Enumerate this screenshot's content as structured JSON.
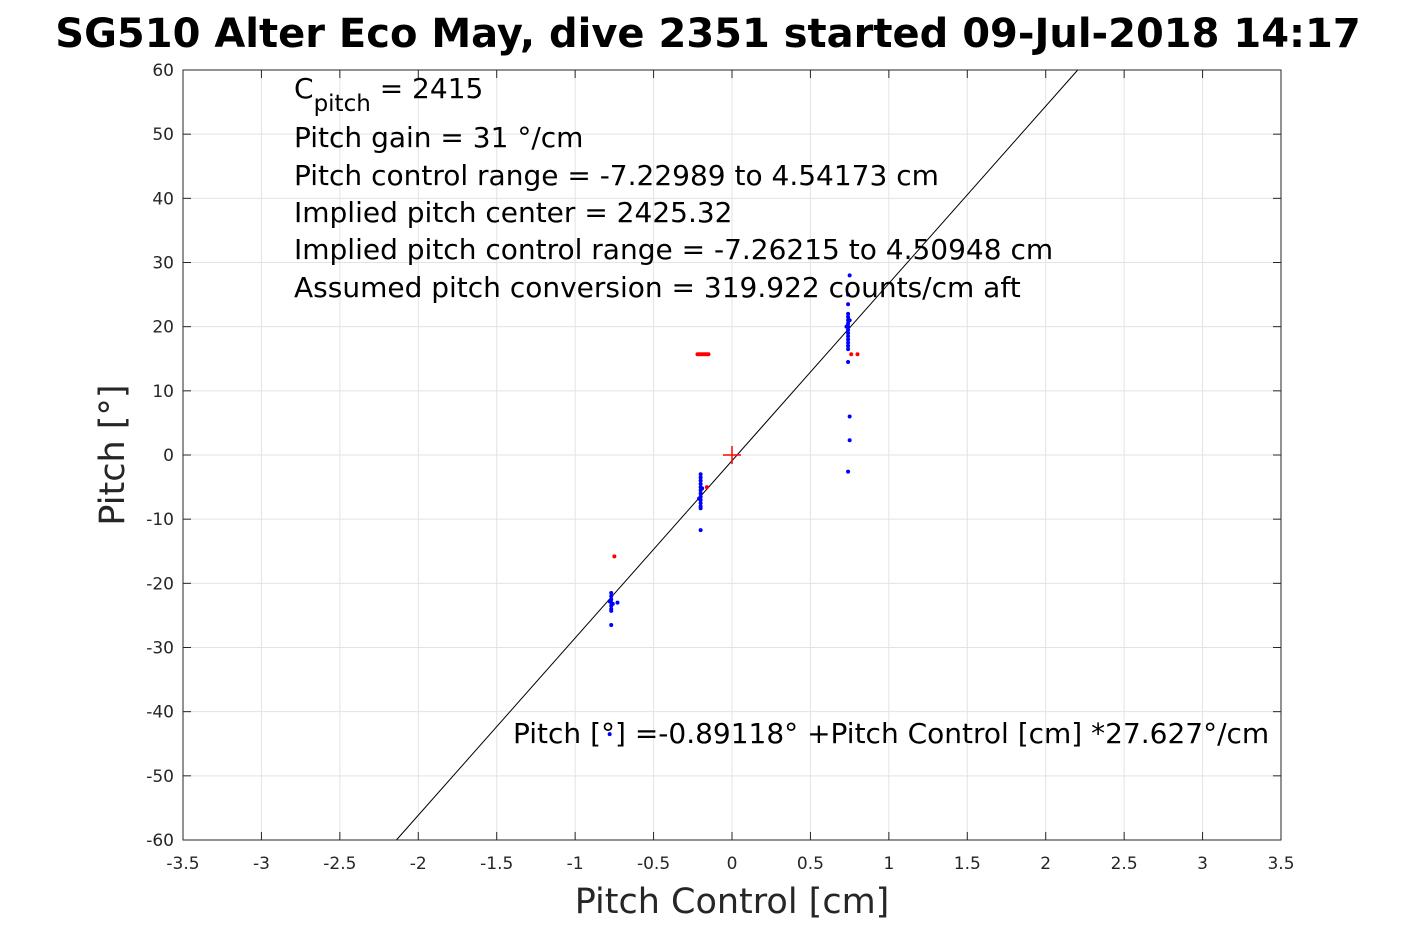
{
  "chart_data": {
    "type": "scatter",
    "title": "SG510 Alter Eco May, dive 2351 started 09-Jul-2018 14:17",
    "xlabel": "Pitch Control [cm]",
    "ylabel": "Pitch [°]",
    "xlim": [
      -3.5,
      3.5
    ],
    "ylim": [
      -60,
      60
    ],
    "x_ticks": [
      "-3.5",
      "-3",
      "-2.5",
      "-2",
      "-1.5",
      "-1",
      "-0.5",
      "0",
      "0.5",
      "1",
      "1.5",
      "2",
      "2.5",
      "3",
      "3.5"
    ],
    "y_ticks": [
      "-60",
      "-50",
      "-40",
      "-30",
      "-20",
      "-10",
      "0",
      "10",
      "20",
      "30",
      "40",
      "50",
      "60"
    ],
    "grid": true,
    "text_lines": {
      "c_pitch_main": "C",
      "c_pitch_sub": "pitch",
      "c_pitch_value": " = 2415",
      "line2": "Pitch gain = 31 °/cm",
      "line3": "Pitch control range = -7.22989 to 4.54173 cm",
      "line4": "Implied pitch center = 2425.32",
      "line5": "Implied pitch control range = -7.26215 to 4.50948 cm",
      "line6": "Assumed pitch conversion = 319.922 counts/cm aft"
    },
    "fit_label": "Pitch [°] =-0.89118° +Pitch Control [cm] *27.627°/cm",
    "fit_line": {
      "intercept": -0.89118,
      "slope": 27.627,
      "color": "#000000"
    },
    "center_marker": {
      "x": 0,
      "y": 0,
      "color": "#ff0000"
    },
    "series": [
      {
        "color": "#0000ff",
        "points": [
          [
            -0.77,
            -21.5
          ],
          [
            -0.77,
            -22
          ],
          [
            -0.77,
            -22.5
          ],
          [
            -0.77,
            -23
          ],
          [
            -0.77,
            -23.5
          ],
          [
            -0.77,
            -24
          ],
          [
            -0.77,
            -24.3
          ],
          [
            -0.78,
            -22.8
          ],
          [
            -0.76,
            -23.2
          ],
          [
            -0.77,
            -26.5
          ],
          [
            -0.73,
            -23
          ],
          [
            -0.78,
            -43.5
          ],
          [
            -0.2,
            -3
          ],
          [
            -0.2,
            -3.5
          ],
          [
            -0.2,
            -4
          ],
          [
            -0.2,
            -4.5
          ],
          [
            -0.2,
            -5
          ],
          [
            -0.2,
            -5.5
          ],
          [
            -0.2,
            -6
          ],
          [
            -0.2,
            -6.5
          ],
          [
            -0.2,
            -7
          ],
          [
            -0.2,
            -7.5
          ],
          [
            -0.2,
            -8
          ],
          [
            -0.2,
            -8.3
          ],
          [
            -0.19,
            -5.2
          ],
          [
            -0.21,
            -6.8
          ],
          [
            -0.2,
            -11.7
          ],
          [
            0.74,
            16.5
          ],
          [
            0.74,
            17
          ],
          [
            0.74,
            17.5
          ],
          [
            0.74,
            18
          ],
          [
            0.74,
            18.5
          ],
          [
            0.74,
            19
          ],
          [
            0.74,
            19.5
          ],
          [
            0.74,
            20
          ],
          [
            0.74,
            20.5
          ],
          [
            0.74,
            21
          ],
          [
            0.74,
            21.5
          ],
          [
            0.74,
            22
          ],
          [
            0.75,
            21
          ],
          [
            0.73,
            20
          ],
          [
            0.74,
            23.5
          ],
          [
            0.74,
            25
          ],
          [
            0.74,
            14.5
          ],
          [
            0.75,
            6
          ],
          [
            0.75,
            2.3
          ],
          [
            0.74,
            -2.6
          ],
          [
            0.75,
            28
          ]
        ]
      },
      {
        "color": "#ff0000",
        "points": [
          [
            -0.75,
            -15.8
          ],
          [
            -0.22,
            15.7
          ],
          [
            -0.21,
            15.7
          ],
          [
            -0.2,
            15.7
          ],
          [
            -0.19,
            15.7
          ],
          [
            -0.18,
            15.7
          ],
          [
            -0.17,
            15.7
          ],
          [
            -0.16,
            15.7
          ],
          [
            -0.15,
            15.7
          ],
          [
            0.76,
            15.7
          ],
          [
            0.8,
            15.7
          ],
          [
            -0.16,
            -5
          ]
        ]
      }
    ]
  }
}
